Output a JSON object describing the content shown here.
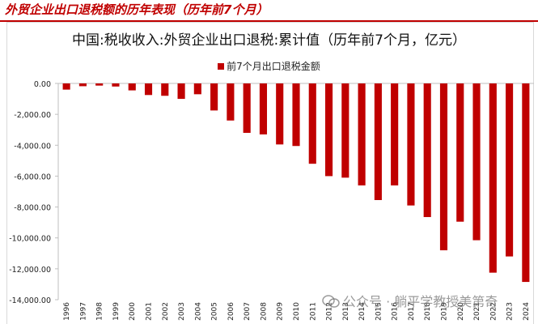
{
  "heading": "外贸企业出口退税额的历年表现（历年前7个月）",
  "watermark": "公众号 · 躺平学教授美第奇",
  "colors": {
    "accent": "#c00000",
    "bar": "#c00000",
    "axis": "#bfbfbf"
  },
  "chart_data": {
    "type": "bar",
    "title": "中国:税收收入:外贸企业出口退税:累计值（历年前7个月，亿元）",
    "legend_position": "top",
    "grid": false,
    "xlabel": "",
    "ylabel": "",
    "ylim": [
      -14000,
      0
    ],
    "y_ticks": [
      0,
      -2000,
      -4000,
      -6000,
      -8000,
      -10000,
      -12000,
      -14000
    ],
    "y_tick_labels": [
      "0.00",
      "-2,000.00",
      "-4,000.00",
      "-6,000.00",
      "-8,000.00",
      "-10,000.00",
      "-12,000.00",
      "-14,000.00"
    ],
    "categories": [
      "1996",
      "1997",
      "1998",
      "1999",
      "2000",
      "2001",
      "2002",
      "2003",
      "2004",
      "2005",
      "2006",
      "2007",
      "2008",
      "2009",
      "2010",
      "2011",
      "2012",
      "2013",
      "2014",
      "2015",
      "2016",
      "2017",
      "2018",
      "2019",
      "2020",
      "2021",
      "2022",
      "2023",
      "2024"
    ],
    "series": [
      {
        "name": "前7个月出口退税金额",
        "values": [
          -400,
          -180,
          -140,
          -200,
          -450,
          -750,
          -800,
          -1000,
          -700,
          -1750,
          -2400,
          -3200,
          -3300,
          -3950,
          -4050,
          -5200,
          -6000,
          -6100,
          -6600,
          -7550,
          -6600,
          -7900,
          -8650,
          -10800,
          -8950,
          -10150,
          -12250,
          -11200,
          -12850
        ]
      }
    ]
  }
}
